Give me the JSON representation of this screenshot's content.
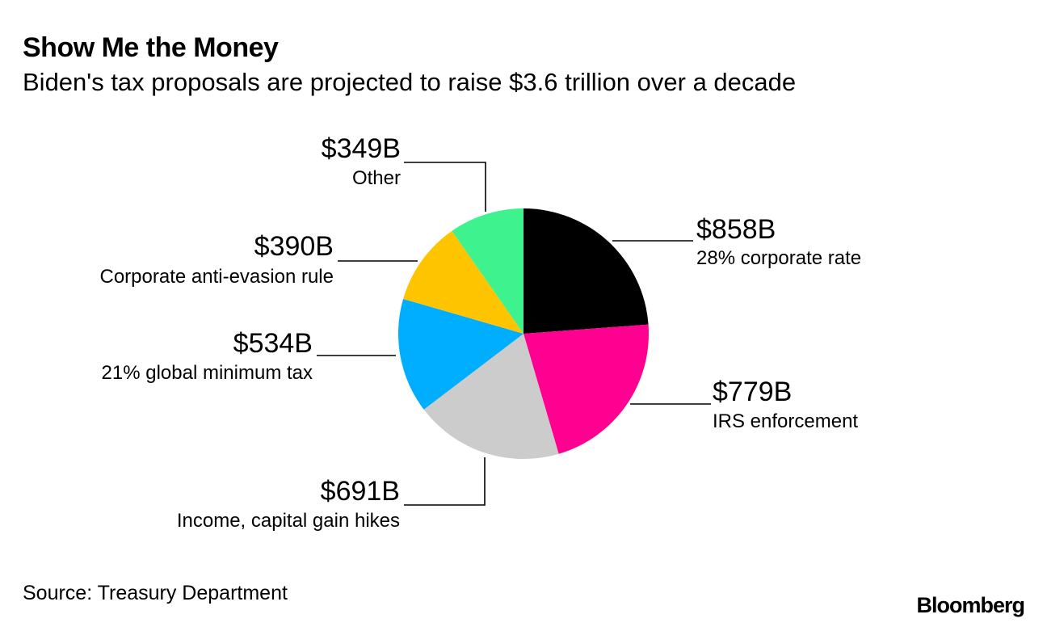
{
  "header": {
    "title": "Show Me the Money",
    "subtitle": "Biden's tax proposals are projected to raise $3.6 trillion over a decade"
  },
  "chart_data": {
    "type": "pie",
    "title": "Show Me the Money",
    "subtitle": "Biden's tax proposals are projected to raise $3.6 trillion over a decade",
    "unit": "billions USD",
    "start": "12 o'clock, clockwise",
    "slices": [
      {
        "label": "28% corporate rate",
        "value": 858,
        "display": "$858B",
        "color": "#000000"
      },
      {
        "label": "IRS enforcement",
        "value": 779,
        "display": "$779B",
        "color": "#ff0090"
      },
      {
        "label": "Income, capital gain hikes",
        "value": 691,
        "display": "$691B",
        "color": "#cccccc"
      },
      {
        "label": "21% global minimum tax",
        "value": 534,
        "display": "$534B",
        "color": "#00aeff"
      },
      {
        "label": "Corporate anti-evasion rule",
        "value": 390,
        "display": "$390B",
        "color": "#ffc400"
      },
      {
        "label": "Other",
        "value": 349,
        "display": "$349B",
        "color": "#3ef28e"
      }
    ]
  },
  "footer": {
    "source": "Source: Treasury Department",
    "brand": "Bloomberg"
  }
}
